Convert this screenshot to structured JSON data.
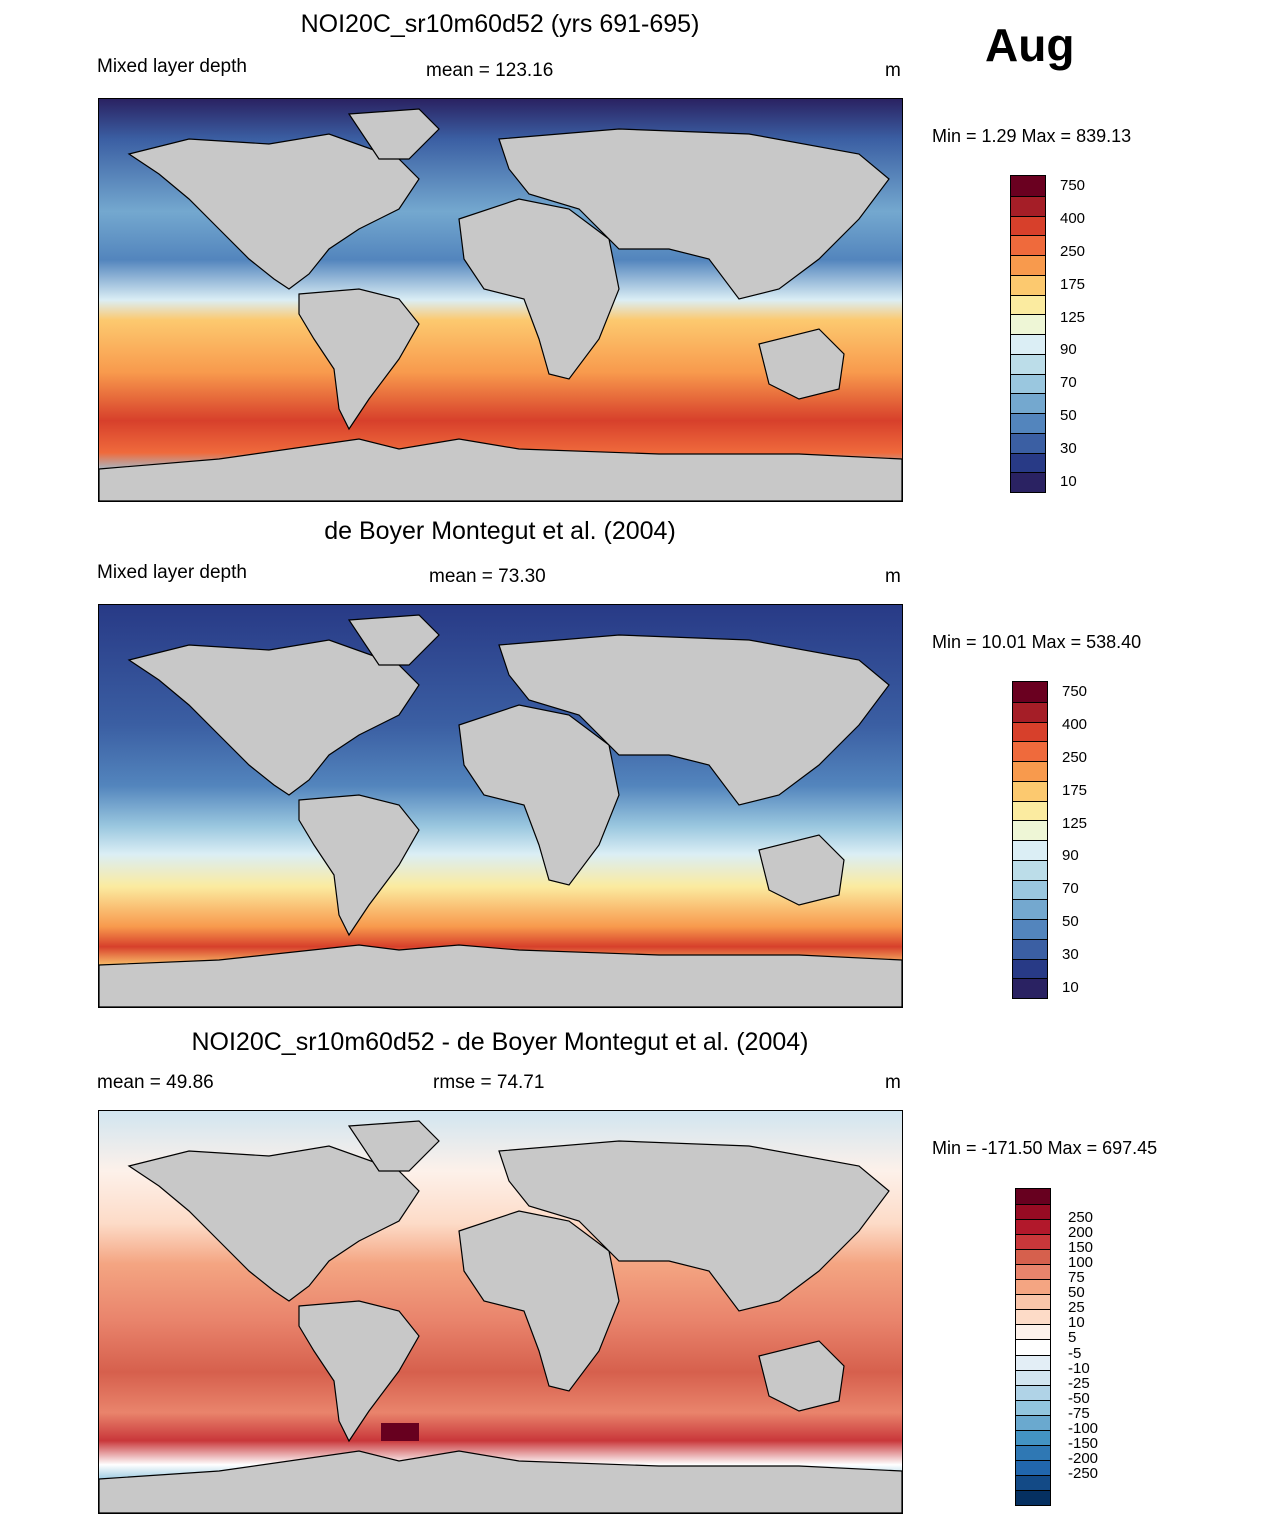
{
  "month": "Aug",
  "panels": [
    {
      "title": "NOI20C_sr10m60d52 (yrs 691-695)",
      "left_label": "Mixed layer depth",
      "center_label": "mean = 123.16",
      "units": "m",
      "minmax": "Min =   1.29 Max = 839.13",
      "colorbar": {
        "labels": [
          "750",
          "400",
          "250",
          "175",
          "125",
          "90",
          "70",
          "50",
          "30",
          "10"
        ],
        "colors": [
          "#6a0020",
          "#a51e27",
          "#d7402b",
          "#ef6a3c",
          "#f89a4d",
          "#fcc96f",
          "#fbeba0",
          "#eef6d6",
          "#dbeef5",
          "#bcdde9",
          "#9ac7df",
          "#74a8cf",
          "#5385bd",
          "#3b5fa3",
          "#283a86",
          "#2a2262"
        ]
      }
    },
    {
      "title": "de Boyer Montegut et al. (2004)",
      "left_label": "Mixed layer depth",
      "center_label": "mean =  73.30",
      "units": "m",
      "minmax": "Min =  10.01 Max = 538.40",
      "colorbar": {
        "labels": [
          "750",
          "400",
          "250",
          "175",
          "125",
          "90",
          "70",
          "50",
          "30",
          "10"
        ],
        "colors": [
          "#6a0020",
          "#a51e27",
          "#d7402b",
          "#ef6a3c",
          "#f89a4d",
          "#fcc96f",
          "#fbeba0",
          "#eef6d6",
          "#dbeef5",
          "#bcdde9",
          "#9ac7df",
          "#74a8cf",
          "#5385bd",
          "#3b5fa3",
          "#283a86",
          "#2a2262"
        ]
      }
    },
    {
      "title": "NOI20C_sr10m60d52 - de Boyer Montegut et al. (2004)",
      "left_label": "mean =  49.86",
      "center_label": "rmse =  74.71",
      "units": "m",
      "minmax": "Min = -171.50 Max = 697.45",
      "colorbar": {
        "labels": [
          "250",
          "200",
          "150",
          "100",
          "75",
          "50",
          "25",
          "10",
          "5",
          "-5",
          "-10",
          "-25",
          "-50",
          "-75",
          "-100",
          "-150",
          "-200",
          "-250"
        ],
        "colors": [
          "#67001f",
          "#970b23",
          "#b2182b",
          "#c9373a",
          "#d6604d",
          "#e9846c",
          "#f4a582",
          "#f9c5aa",
          "#fddbc7",
          "#fdf1ea",
          "#ffffff",
          "#e3eef6",
          "#d1e5f0",
          "#b0d3e7",
          "#92c5de",
          "#6aa9cf",
          "#4393c3",
          "#2f78b4",
          "#2166ac",
          "#134a86",
          "#053061"
        ]
      }
    }
  ]
}
